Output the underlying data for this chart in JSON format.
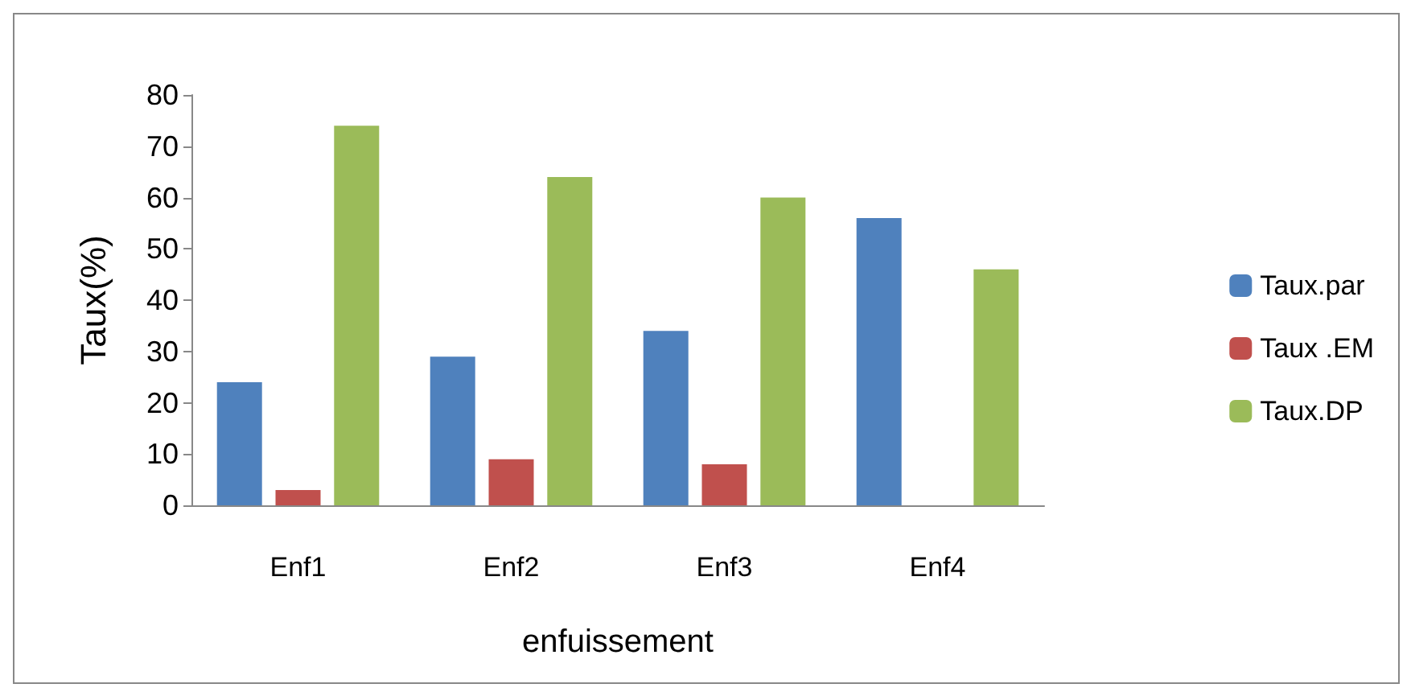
{
  "chart_data": {
    "type": "bar",
    "xlabel": "enfuissement",
    "ylabel": "Taux(%)",
    "categories": [
      "Enf1",
      "Enf2",
      "Enf3",
      "Enf4"
    ],
    "series": [
      {
        "name": "Taux.par",
        "color": "#4f81bd",
        "values": [
          24,
          29,
          34,
          56
        ]
      },
      {
        "name": "Taux .EM",
        "color": "#c0504d",
        "values": [
          3,
          9,
          8,
          0
        ]
      },
      {
        "name": "Taux.DP",
        "color": "#9bbb59",
        "values": [
          74,
          64,
          60,
          46
        ]
      }
    ],
    "ylim": [
      0,
      80
    ],
    "yticks": [
      0,
      10,
      20,
      30,
      40,
      50,
      60,
      70,
      80
    ],
    "grid": false,
    "legend": "right"
  }
}
